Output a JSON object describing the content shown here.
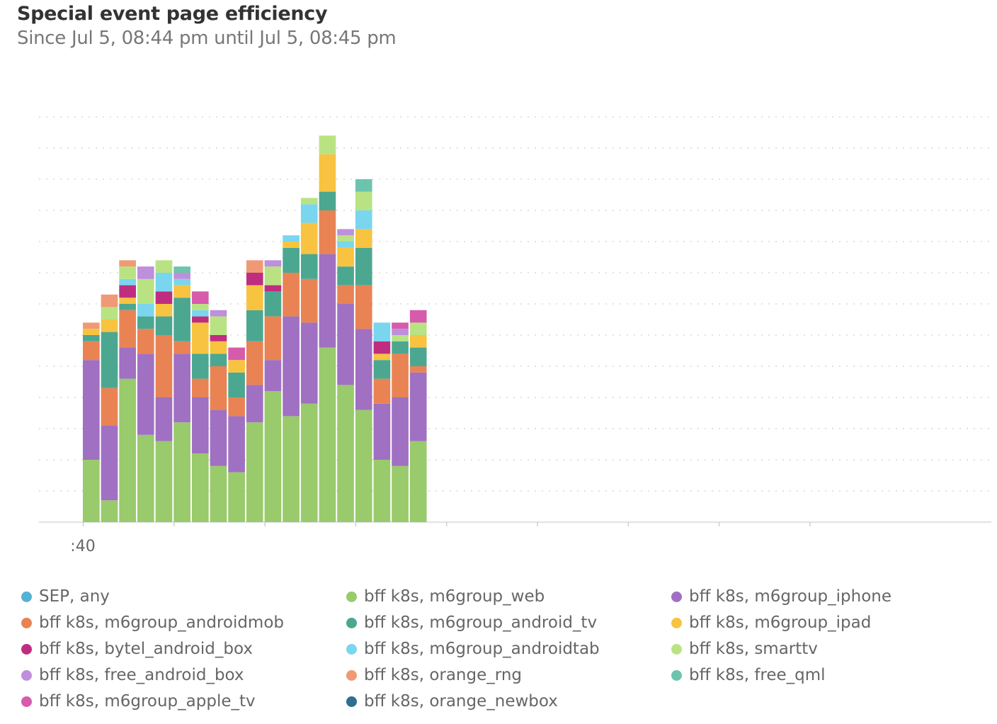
{
  "title": "Special event page efficiency",
  "subtitle": "Since Jul 5, 08:44 pm until Jul 5, 08:45 pm",
  "chart_data": {
    "type": "bar",
    "stacked": true,
    "grid": true,
    "legend_position": "bottom",
    "x_tick_labels": [
      ":40"
    ],
    "ylim": [
      0,
      13
    ],
    "series": [
      {
        "name": "SEP, any",
        "color": "#55B1D5",
        "values": [
          0,
          0,
          0,
          0,
          0,
          0,
          0,
          0,
          0,
          0,
          0,
          0,
          0,
          0,
          0,
          0,
          0,
          0,
          0,
          0,
          0,
          0,
          0,
          0,
          0,
          0,
          0,
          0,
          0,
          0,
          0,
          0,
          0,
          0,
          0,
          0,
          0,
          0,
          0,
          0,
          0,
          0,
          0,
          0,
          0,
          0,
          0,
          0,
          0,
          0
        ]
      },
      {
        "name": "bff k8s, m6group_web",
        "color": "#99CA6B",
        "values": [
          2,
          0.7,
          4.6,
          2.8,
          2.6,
          3.2,
          2.2,
          1.8,
          1.6,
          3.2,
          4.2,
          3.4,
          3.8,
          5.6,
          4.4,
          3.6,
          2,
          1.8,
          2.6,
          0,
          0,
          0,
          0,
          0,
          0,
          0,
          0,
          0,
          0,
          0,
          0,
          0,
          0,
          0,
          0,
          0,
          0,
          0,
          0,
          0,
          0,
          0,
          0,
          0,
          0,
          0,
          0,
          0,
          0,
          0
        ]
      },
      {
        "name": "bff k8s, m6group_iphone",
        "color": "#A070C2",
        "values": [
          3.2,
          2.4,
          1,
          2.6,
          1.4,
          2.2,
          1.8,
          1.8,
          1.8,
          1.2,
          1,
          3.2,
          2.6,
          3,
          2.6,
          2.6,
          1.8,
          2.2,
          2.2,
          0,
          0,
          0,
          0,
          0,
          0,
          0,
          0,
          0,
          0,
          0,
          0,
          0,
          0,
          0,
          0,
          0,
          0,
          0,
          0,
          0,
          0,
          0,
          0,
          0,
          0,
          0,
          0,
          0,
          0,
          0
        ]
      },
      {
        "name": "bff k8s, m6group_androidmob",
        "color": "#E98354",
        "values": [
          0.6,
          1.2,
          1.2,
          0.8,
          2,
          0.4,
          0.6,
          1.4,
          0.6,
          1.4,
          1.4,
          1.4,
          1.4,
          1.4,
          0.6,
          1.4,
          0.8,
          1.4,
          0.2,
          0,
          0,
          0,
          0,
          0,
          0,
          0,
          0,
          0,
          0,
          0,
          0,
          0,
          0,
          0,
          0,
          0,
          0,
          0,
          0,
          0,
          0,
          0,
          0,
          0,
          0,
          0,
          0,
          0,
          0,
          0
        ]
      },
      {
        "name": "bff k8s, m6group_android_tv",
        "color": "#4CA791",
        "values": [
          0.2,
          1.8,
          0.2,
          0.4,
          0.6,
          1.4,
          0.8,
          0.4,
          0.8,
          1,
          0.8,
          0.8,
          0.8,
          0.6,
          0.6,
          1.2,
          0.6,
          0.4,
          0.6,
          0,
          0,
          0,
          0,
          0,
          0,
          0,
          0,
          0,
          0,
          0,
          0,
          0,
          0,
          0,
          0,
          0,
          0,
          0,
          0,
          0,
          0,
          0,
          0,
          0,
          0,
          0,
          0,
          0,
          0,
          0
        ]
      },
      {
        "name": "bff k8s, m6group_ipad",
        "color": "#F7C340",
        "values": [
          0.2,
          0.4,
          0.2,
          0,
          0.4,
          0.4,
          1,
          0.4,
          0.4,
          0.8,
          0,
          0.2,
          1,
          1.2,
          0.6,
          0.6,
          0.2,
          0,
          0.4,
          0,
          0,
          0,
          0,
          0,
          0,
          0,
          0,
          0,
          0,
          0,
          0,
          0,
          0,
          0,
          0,
          0,
          0,
          0,
          0,
          0,
          0,
          0,
          0,
          0,
          0,
          0,
          0,
          0,
          0,
          0
        ]
      },
      {
        "name": "bff k8s, bytel_android_box",
        "color": "#BF2D80",
        "values": [
          0,
          0,
          0.4,
          0,
          0.4,
          0,
          0.2,
          0.2,
          0,
          0.4,
          0.2,
          0,
          0,
          0,
          0,
          0,
          0.4,
          0,
          0,
          0,
          0,
          0,
          0,
          0,
          0,
          0,
          0,
          0,
          0,
          0,
          0,
          0,
          0,
          0,
          0,
          0,
          0,
          0,
          0,
          0,
          0,
          0,
          0,
          0,
          0,
          0,
          0,
          0,
          0,
          0
        ]
      },
      {
        "name": "bff k8s, m6group_androidtab",
        "color": "#79D6EE",
        "values": [
          0,
          0,
          0.2,
          0.4,
          0.6,
          0.2,
          0.2,
          0,
          0,
          0,
          0,
          0.2,
          0.6,
          0,
          0.2,
          0.6,
          0.6,
          0,
          0,
          0,
          0,
          0,
          0,
          0,
          0,
          0,
          0,
          0,
          0,
          0,
          0,
          0,
          0,
          0,
          0,
          0,
          0,
          0,
          0,
          0,
          0,
          0,
          0,
          0,
          0,
          0,
          0,
          0,
          0,
          0
        ]
      },
      {
        "name": "bff k8s, smarttv",
        "color": "#B9E383",
        "values": [
          0,
          0.4,
          0.4,
          0.8,
          0.4,
          0,
          0.2,
          0.6,
          0,
          0,
          0.6,
          0,
          0.2,
          0.6,
          0.2,
          0.6,
          0,
          0.2,
          0.4,
          0,
          0,
          0,
          0,
          0,
          0,
          0,
          0,
          0,
          0,
          0,
          0,
          0,
          0,
          0,
          0,
          0,
          0,
          0,
          0,
          0,
          0,
          0,
          0,
          0,
          0,
          0,
          0,
          0,
          0,
          0
        ]
      },
      {
        "name": "bff k8s, free_android_box",
        "color": "#BE8FDA",
        "values": [
          0,
          0,
          0,
          0.4,
          0,
          0.2,
          0,
          0.2,
          0,
          0,
          0.2,
          0,
          0,
          0,
          0.2,
          0,
          0,
          0.2,
          0,
          0,
          0,
          0,
          0,
          0,
          0,
          0,
          0,
          0,
          0,
          0,
          0,
          0,
          0,
          0,
          0,
          0,
          0,
          0,
          0,
          0,
          0,
          0,
          0,
          0,
          0,
          0,
          0,
          0,
          0,
          0
        ]
      },
      {
        "name": "bff k8s, orange_rng",
        "color": "#EF9A74",
        "values": [
          0.2,
          0.4,
          0.2,
          0,
          0,
          0,
          0,
          0,
          0,
          0.4,
          0,
          0,
          0,
          0,
          0,
          0,
          0,
          0,
          0,
          0,
          0,
          0,
          0,
          0,
          0,
          0,
          0,
          0,
          0,
          0,
          0,
          0,
          0,
          0,
          0,
          0,
          0,
          0,
          0,
          0,
          0,
          0,
          0,
          0,
          0,
          0,
          0,
          0,
          0,
          0
        ]
      },
      {
        "name": "bff k8s, free_qml",
        "color": "#6CC4AE",
        "values": [
          0,
          0,
          0,
          0,
          0,
          0.2,
          0,
          0,
          0,
          0,
          0,
          0,
          0,
          0,
          0,
          0.4,
          0,
          0,
          0,
          0,
          0,
          0,
          0,
          0,
          0,
          0,
          0,
          0,
          0,
          0,
          0,
          0,
          0,
          0,
          0,
          0,
          0,
          0,
          0,
          0,
          0,
          0,
          0,
          0,
          0,
          0,
          0,
          0,
          0,
          0
        ]
      },
      {
        "name": "bff k8s, m6group_apple_tv",
        "color": "#D65BAC",
        "values": [
          0,
          0,
          0,
          0,
          0,
          0,
          0.4,
          0,
          0.4,
          0,
          0,
          0,
          0,
          0,
          0,
          0,
          0,
          0.2,
          0.4,
          0,
          0,
          0,
          0,
          0,
          0,
          0,
          0,
          0,
          0,
          0,
          0,
          0,
          0,
          0,
          0,
          0,
          0,
          0,
          0,
          0,
          0,
          0,
          0,
          0,
          0,
          0,
          0,
          0,
          0,
          0
        ]
      },
      {
        "name": "bff k8s, orange_newbox",
        "color": "#2D6F8E",
        "values": [
          0,
          0,
          0,
          0,
          0,
          0,
          0,
          0,
          0,
          0,
          0,
          0,
          0,
          0,
          0,
          0,
          0,
          0,
          0,
          0,
          0,
          0,
          0,
          0,
          0,
          0,
          0,
          0,
          0,
          0,
          0,
          0,
          0,
          0,
          0,
          0,
          0,
          0,
          0,
          0,
          0,
          0,
          0,
          0,
          0,
          0,
          0,
          0,
          0,
          0
        ]
      }
    ]
  }
}
